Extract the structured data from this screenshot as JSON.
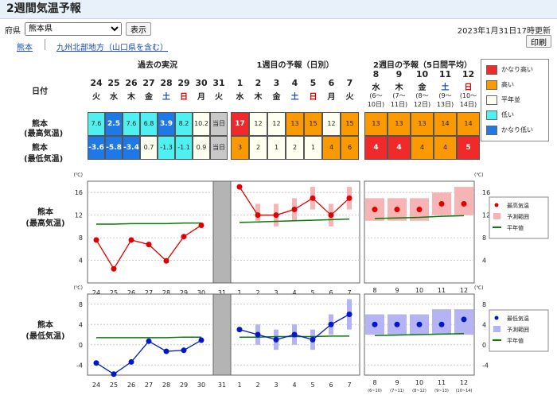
{
  "title": "2週間気温予報",
  "controls": {
    "pref_label": "府県",
    "pref_selected": "熊本県",
    "show_button": "表示",
    "updated": "2023年1月31日17時更新",
    "print_button": "印刷",
    "link_kumamoto": "熊本",
    "link_region": "九州北部地方（山口県を含む）"
  },
  "table": {
    "date_label": "日付",
    "header_past": "過去の実況",
    "header_week1": "1週目の予報（日別）",
    "header_week2": "2週目の予報（5日間平均）",
    "row_high": [
      "熊本",
      "(最高気温)"
    ],
    "row_low": [
      "熊本",
      "(最低気温)"
    ],
    "past_days": [
      {
        "d": "24",
        "w": "火"
      },
      {
        "d": "25",
        "w": "水"
      },
      {
        "d": "26",
        "w": "木"
      },
      {
        "d": "27",
        "w": "金"
      },
      {
        "d": "28",
        "w": "土"
      },
      {
        "d": "29",
        "w": "日"
      },
      {
        "d": "30",
        "w": "月"
      },
      {
        "d": "31",
        "w": "火"
      }
    ],
    "week1_days": [
      {
        "d": "1",
        "w": "水"
      },
      {
        "d": "2",
        "w": "木"
      },
      {
        "d": "3",
        "w": "金"
      },
      {
        "d": "4",
        "w": "土"
      },
      {
        "d": "5",
        "w": "日"
      },
      {
        "d": "6",
        "w": "月"
      },
      {
        "d": "7",
        "w": "火"
      }
    ],
    "week2_days": [
      {
        "d": "8",
        "w": "水",
        "r1": "(6～",
        "r2": "10日)"
      },
      {
        "d": "9",
        "w": "木",
        "r1": "(7～",
        "r2": "11日)"
      },
      {
        "d": "10",
        "w": "金",
        "r1": "(8～",
        "r2": "12日)"
      },
      {
        "d": "11",
        "w": "土",
        "r1": "(9～",
        "r2": "13日)"
      },
      {
        "d": "12",
        "w": "日",
        "r1": "(10～",
        "r2": "14日)"
      }
    ],
    "past_high": [
      "7.6",
      "2.5",
      "7.6",
      "6.8",
      "3.9",
      "8.2",
      "10.2",
      "当日"
    ],
    "past_low": [
      "-3.6",
      "-5.8",
      "-3.4",
      "0.7",
      "-1.3",
      "-1.1",
      "0.9",
      "当日"
    ],
    "w1_high": [
      "17",
      "12",
      "12",
      "13",
      "15",
      "12",
      "15"
    ],
    "w1_low": [
      "3",
      "2",
      "1",
      "2",
      "1",
      "4",
      "6"
    ],
    "w2_high": [
      "13",
      "13",
      "13",
      "14",
      "14"
    ],
    "w2_low": [
      "4",
      "4",
      "4",
      "4",
      "5"
    ],
    "past_high_cls": [
      "lo",
      "vlo",
      "lo",
      "lo",
      "vlo",
      "lo",
      "norm",
      "today"
    ],
    "past_low_cls": [
      "vlo",
      "vlo",
      "vlo",
      "norm",
      "lo",
      "lo",
      "norm",
      "today"
    ],
    "w1_high_cls": [
      "vhi",
      "norm",
      "norm",
      "hi",
      "hi",
      "norm",
      "hi"
    ],
    "w1_low_cls": [
      "hi",
      "norm",
      "norm",
      "norm",
      "norm",
      "hi",
      "hi"
    ],
    "w2_high_cls": [
      "hi",
      "hi",
      "hi",
      "hi",
      "hi"
    ],
    "w2_low_cls": [
      "vhi",
      "vhi",
      "hi",
      "hi",
      "vhi"
    ]
  },
  "legend_class": {
    "items": [
      {
        "label": "かなり高い",
        "color": "#f02a2a"
      },
      {
        "label": "高い",
        "color": "#fa9a00"
      },
      {
        "label": "平年並",
        "color": "#fffff0"
      },
      {
        "label": "低い",
        "color": "#4ff0f0"
      },
      {
        "label": "かなり低い",
        "color": "#1e78e6"
      }
    ]
  },
  "colors": {
    "vhi": "#f02a2a",
    "hi": "#fa9a00",
    "norm": "#fffff0",
    "lo": "#4ff0f0",
    "vlo": "#1e78e6",
    "today": "#c8c8c8",
    "high_line": "#e00000",
    "low_line": "#0018c8",
    "normal_line": "#0a7a0a",
    "high_range": "#f6b4b4",
    "low_range": "#b4b4f4"
  },
  "chart_data": [
    {
      "type": "line",
      "title": "熊本 (最高気温)",
      "unit": "(℃)",
      "ylim": [
        0,
        18
      ],
      "yticks": [
        4,
        8,
        12,
        16
      ],
      "past": {
        "x": [
          "24",
          "25",
          "26",
          "27",
          "28",
          "29",
          "30"
        ],
        "values": [
          7.6,
          2.5,
          7.6,
          6.8,
          3.9,
          8.2,
          10.2
        ],
        "normal": [
          10.4,
          10.4,
          10.5,
          10.5,
          10.5,
          10.6,
          10.6
        ]
      },
      "today": "31",
      "week1": {
        "x": [
          "1",
          "2",
          "3",
          "4",
          "5",
          "6",
          "7"
        ],
        "values": [
          17,
          12,
          12,
          13,
          15,
          12,
          15
        ],
        "range": [
          null,
          [
            11,
            14
          ],
          [
            10,
            14
          ],
          [
            11,
            15
          ],
          [
            13,
            17
          ],
          [
            10,
            14
          ],
          [
            13,
            17
          ]
        ],
        "normal": [
          10.7,
          10.8,
          10.9,
          11.0,
          11.1,
          11.2,
          11.3
        ]
      },
      "week2": {
        "x": [
          "8",
          "9",
          "10",
          "11",
          "12"
        ],
        "sub": [
          "(6~10)",
          "(7~11)",
          "(8~12)",
          "(9~13)",
          "(10~14)"
        ],
        "values": [
          13,
          13,
          13,
          14,
          14
        ],
        "range": [
          [
            11,
            15
          ],
          [
            11,
            15
          ],
          [
            11,
            15
          ],
          [
            12,
            16
          ],
          [
            12,
            17
          ]
        ],
        "normal": [
          11.4,
          11.5,
          11.6,
          11.8,
          11.9
        ]
      },
      "legend": [
        "最高気温",
        "予測範囲",
        "平年値"
      ]
    },
    {
      "type": "line",
      "title": "熊本 (最低気温)",
      "unit": "(℃)",
      "ylim": [
        -6,
        10
      ],
      "yticks": [
        -4,
        0,
        4,
        8
      ],
      "past": {
        "x": [
          "24",
          "25",
          "26",
          "27",
          "28",
          "29",
          "30"
        ],
        "values": [
          -3.6,
          -5.8,
          -3.4,
          0.7,
          -1.3,
          -1.1,
          0.9
        ],
        "normal": [
          1.4,
          1.4,
          1.4,
          1.4,
          1.4,
          1.5,
          1.5
        ]
      },
      "today": "31",
      "week1": {
        "x": [
          "1",
          "2",
          "3",
          "4",
          "5",
          "6",
          "7"
        ],
        "values": [
          3,
          2,
          1,
          2,
          1,
          4,
          6
        ],
        "range": [
          null,
          [
            0,
            4
          ],
          [
            -1,
            3
          ],
          [
            0,
            4
          ],
          [
            -1,
            3
          ],
          [
            2,
            6
          ],
          [
            3,
            9
          ]
        ],
        "normal": [
          1.5,
          1.5,
          1.6,
          1.6,
          1.6,
          1.7,
          1.7
        ]
      },
      "week2": {
        "x": [
          "8",
          "9",
          "10",
          "11",
          "12"
        ],
        "sub": [
          "(6~10)",
          "(7~11)",
          "(8~12)",
          "(9~13)",
          "(10~14)"
        ],
        "values": [
          4,
          4,
          4,
          4,
          5
        ],
        "range": [
          [
            2,
            6
          ],
          [
            2,
            6
          ],
          [
            2,
            6
          ],
          [
            2,
            7
          ],
          [
            2,
            7
          ]
        ],
        "normal": [
          1.8,
          1.9,
          2.0,
          2.1,
          2.2
        ]
      },
      "legend": [
        "最低気温",
        "予測範囲",
        "平年値"
      ]
    }
  ]
}
